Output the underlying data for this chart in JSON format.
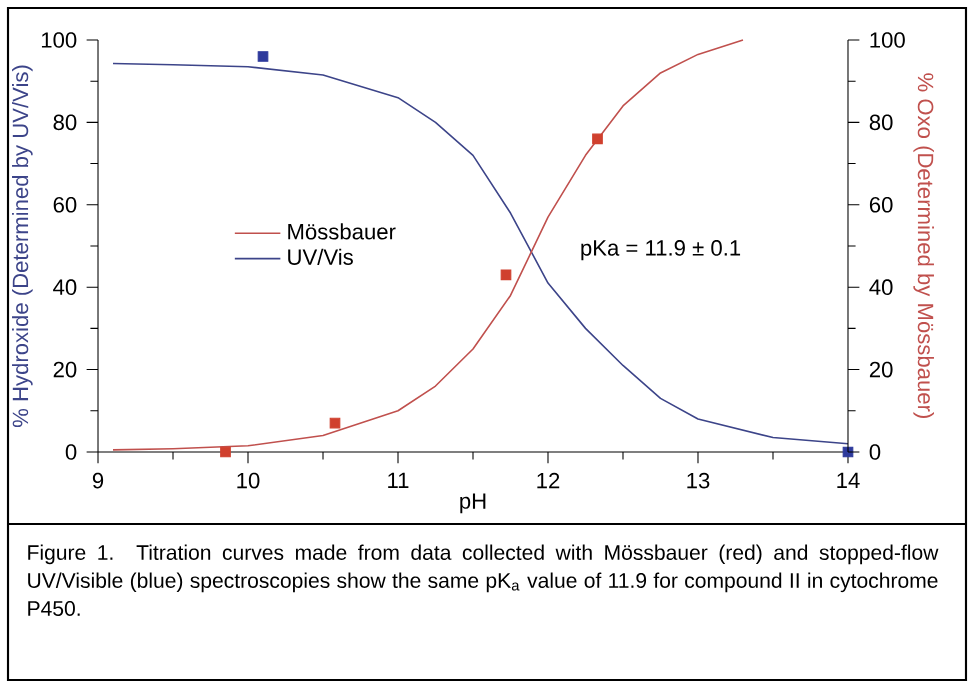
{
  "chart_data": {
    "type": "line",
    "xlabel": "pH",
    "ylabel": "% Hydroxide (Determined by UV/Vis)",
    "y2label": "% Oxo (Determined by Mössbauer)",
    "xlim": [
      9,
      14
    ],
    "xticks": [
      9,
      10,
      11,
      12,
      13,
      14
    ],
    "ylim": [
      0,
      100
    ],
    "yticks": [
      0,
      20,
      40,
      60,
      80,
      100
    ],
    "y2lim": [
      0,
      100
    ],
    "y2ticks": [
      0,
      20,
      40,
      60,
      80,
      100
    ],
    "legend": "left",
    "grid": false,
    "annotations": [
      "pKa = 11.9 ± 0.1",
      "Figure 1.  Titration curves made from data collected with Mössbauer (red) and stopped-flow UV/Visible (blue) spectroscopies show the same pK$_{a}$ value of 11.9 for compound II in cytochrome P450."
    ],
    "series": [
      {
        "name": "Mössbauer",
        "axis": "y2",
        "color": "#c0504d",
        "marker": "none",
        "line_style": "solid",
        "x": [
          9.1,
          9.5,
          10,
          10.5,
          11,
          11.25,
          11.5,
          11.75,
          12,
          12.25,
          12.5,
          12.75,
          13,
          13.3
        ],
        "values": [
          0.5,
          0.8,
          1.5,
          4,
          10,
          16,
          25,
          38,
          57,
          72,
          84,
          92,
          96.5,
          100
        ]
      },
      {
        "name": "UV/Vis",
        "axis": "y",
        "color": "#3c4489",
        "marker": "none",
        "line_style": "solid",
        "x": [
          9.1,
          9.5,
          10,
          10.5,
          11,
          11.25,
          11.5,
          11.75,
          12,
          12.25,
          12.5,
          12.75,
          13,
          13.5,
          14
        ],
        "values": [
          94.3,
          94,
          93.5,
          91.5,
          86,
          80,
          72,
          58,
          41,
          30,
          21,
          13,
          8,
          3.5,
          2
        ]
      },
      {
        "type": "scatter",
        "axis": "y",
        "color": "#2e3a9c",
        "marker": "square",
        "x": [
          10.1,
          14.0
        ],
        "values": [
          96,
          0
        ]
      },
      {
        "type": "scatter",
        "axis": "y2",
        "color": "#d0402e",
        "marker": "square",
        "x": [
          9.85,
          10.58,
          11.72,
          12.33
        ],
        "values": [
          0,
          7,
          43,
          76
        ]
      }
    ]
  }
}
